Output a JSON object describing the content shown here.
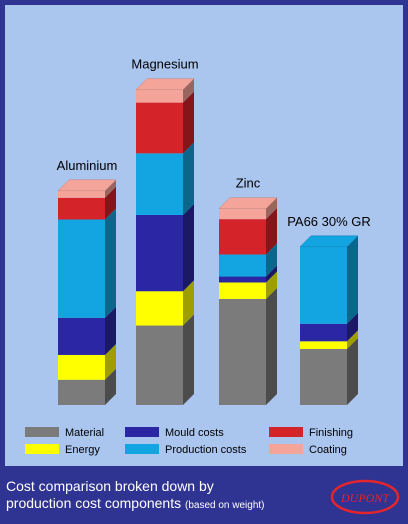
{
  "chart_data": {
    "type": "bar",
    "stacked": true,
    "categories": [
      "Aluminium",
      "Magnesium",
      "Zinc",
      "PA66 30% GR"
    ],
    "ylim": [
      0,
      100
    ],
    "series": [
      {
        "name": "Material",
        "color": "#7b7b7b",
        "values": [
          7.2,
          22.7,
          30.3,
          16.0
        ]
      },
      {
        "name": "Energy",
        "color": "#ffff00",
        "values": [
          7.1,
          9.8,
          4.7,
          2.2
        ]
      },
      {
        "name": "Mould costs",
        "color": "#2b27a4",
        "values": [
          10.6,
          21.8,
          1.7,
          5.0
        ]
      },
      {
        "name": "Production costs",
        "color": "#13a5e1",
        "values": [
          28.1,
          17.6,
          6.3,
          22.0
        ]
      },
      {
        "name": "Finishing",
        "color": "#d5232a",
        "values": [
          6.2,
          14.5,
          10.1,
          0
        ]
      },
      {
        "name": "Coating",
        "color": "#f5a49a",
        "values": [
          2.0,
          3.7,
          3.0,
          0
        ]
      }
    ],
    "legend_placement": "bottom",
    "grid": false
  },
  "footer": {
    "title_line1": "Cost comparison broken down by",
    "title_line2": "production cost components",
    "title_note": "(based on weight)"
  },
  "logo": {
    "text": "DUPONT"
  }
}
